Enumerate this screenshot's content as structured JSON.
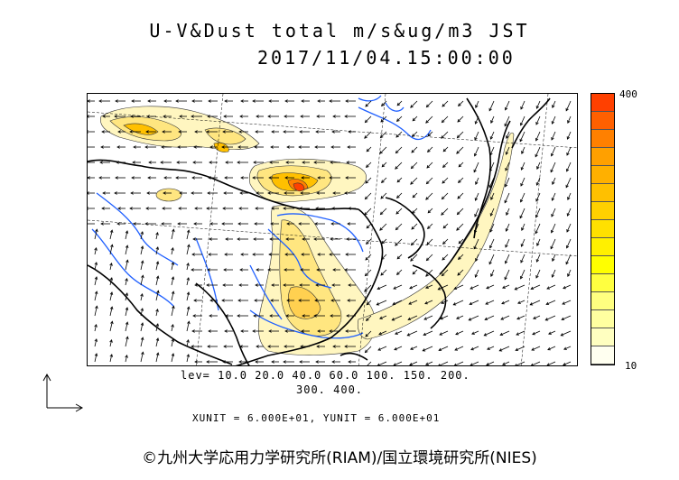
{
  "header": {
    "title": "U-V&Dust total m/s&ug/m3 JST",
    "datetime": "2017/11/04.15:00:00"
  },
  "colorbar": {
    "max_label": "400",
    "min_label": "10",
    "colors": [
      "#ff4000",
      "#ff6000",
      "#ff8000",
      "#ffa000",
      "#ffb000",
      "#ffc000",
      "#ffd000",
      "#ffe000",
      "#fff000",
      "#ffff00",
      "#ffff40",
      "#ffff80",
      "#ffffa0",
      "#ffffc0",
      "#fffff0"
    ]
  },
  "legend": {
    "levels_line1": "lev= 10.0 20.0 40.0 60.0 100. 150. 200.",
    "levels_line2": "300. 400."
  },
  "vector_units": "XUNIT = 6.000E+01, YUNIT = 6.000E+01",
  "footer": {
    "copyright": "©九州大学応用力学研究所(RIAM)/国立環境研究所(NIES)"
  },
  "map_colors": {
    "coast": "#000000",
    "river": "#2060ff",
    "arrow": "#000000",
    "dust_light": "#fff6c0",
    "dust_mid": "#ffe680",
    "dust_high": "#ffc000",
    "dust_peak": "#ff4000"
  }
}
